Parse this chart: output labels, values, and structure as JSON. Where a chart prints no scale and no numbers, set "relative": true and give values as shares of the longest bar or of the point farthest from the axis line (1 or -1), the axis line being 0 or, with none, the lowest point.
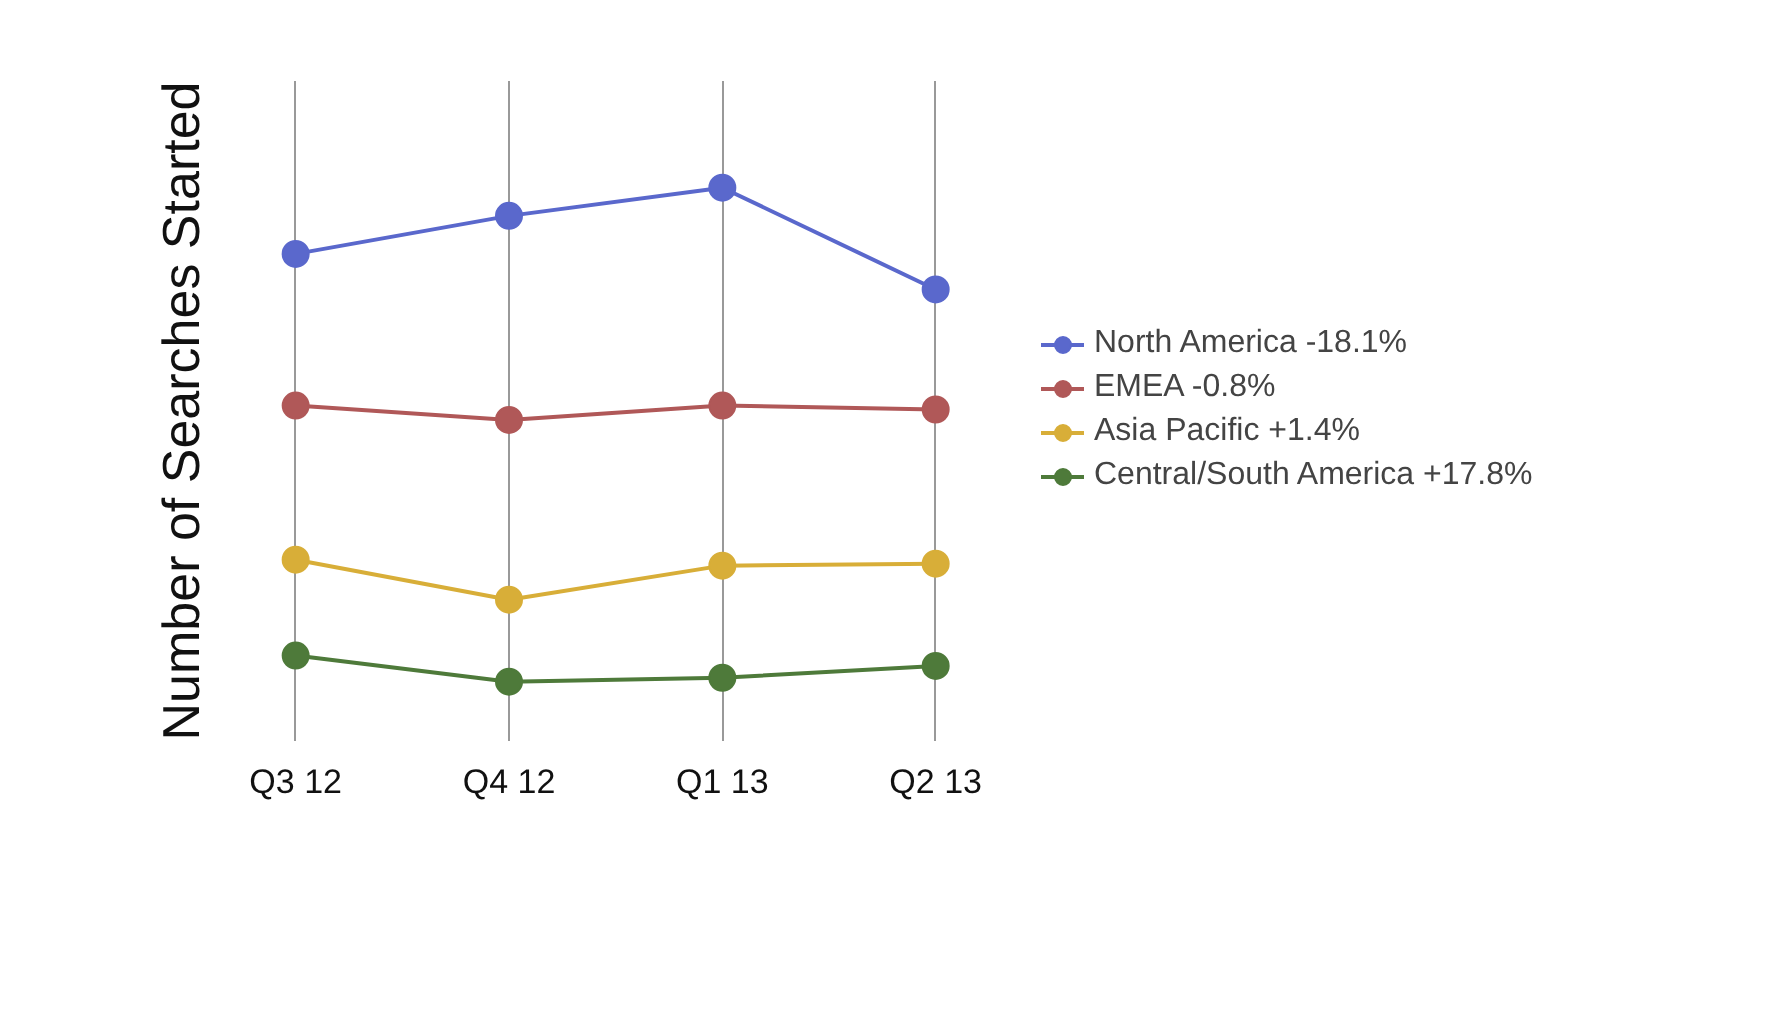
{
  "chart_data": {
    "type": "line",
    "ylabel": "Number of Searches Started",
    "relative": true,
    "categories": [
      "Q3 12",
      "Q4 12",
      "Q1 13",
      "Q2 13"
    ],
    "series": [
      {
        "name": "North America -18.1%",
        "color": "#5a68cc",
        "values": [
          0.866,
          0.943,
          1,
          0.794
        ]
      },
      {
        "name": "EMEA -0.8%",
        "color": "#b05858",
        "values": [
          0.559,
          0.53,
          0.559,
          0.551
        ]
      },
      {
        "name": "Asia Pacific +1.4%",
        "color": "#d8ae38",
        "values": [
          0.247,
          0.166,
          0.235,
          0.239
        ]
      },
      {
        "name": "Central/South America +17.8%",
        "color": "#4e7a3a",
        "values": [
          0.053,
          0,
          0.008,
          0.032
        ]
      }
    ],
    "grid": "x",
    "legend": "right",
    "marker": "circle",
    "line_style": "solid"
  }
}
